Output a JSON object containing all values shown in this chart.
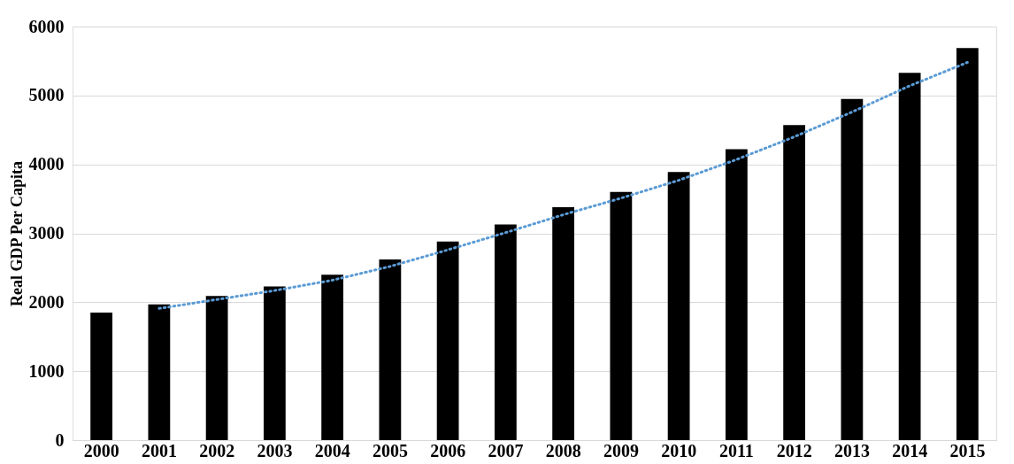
{
  "chart_data": {
    "type": "bar",
    "ylabel": "Real GDP Per Capita",
    "categories": [
      "2000",
      "2001",
      "2002",
      "2003",
      "2004",
      "2005",
      "2006",
      "2007",
      "2008",
      "2009",
      "2010",
      "2011",
      "2012",
      "2013",
      "2014",
      "2015"
    ],
    "series": [
      {
        "color": "#000000",
        "values": [
          1850,
          1970,
          2090,
          2230,
          2400,
          2620,
          2880,
          3130,
          3380,
          3600,
          3890,
          4220,
          4570,
          4950,
          5330,
          5690
        ]
      },
      {
        "type": "line",
        "color": "#5b9bd5",
        "line_style": "dotted",
        "values": [
          null,
          1910,
          2040,
          2170,
          2320,
          2520,
          2760,
          3010,
          3270,
          3510,
          3770,
          4070,
          4400,
          4760,
          5140,
          5480
        ]
      }
    ],
    "ylim": [
      0,
      6000
    ],
    "yticks": [
      0,
      1000,
      2000,
      3000,
      4000,
      5000,
      6000
    ],
    "grid": "y"
  }
}
